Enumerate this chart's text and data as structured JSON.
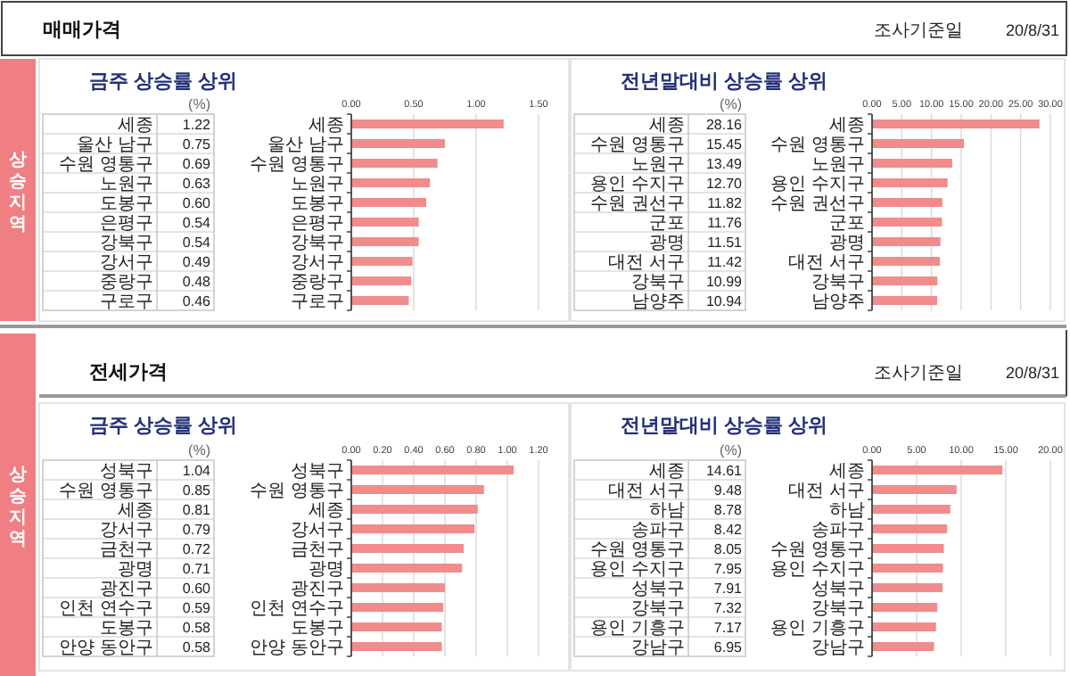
{
  "chart_data": [
    {
      "type": "bar",
      "orientation": "horizontal",
      "title": "금주 상승률 상위",
      "xlabel": "(%)",
      "annotations": [
        "매매가격",
        "조사기준일",
        "20/8/31",
        "상승지역"
      ],
      "categories": [
        "세종",
        "울산 남구",
        "수원 영통구",
        "노원구",
        "도봉구",
        "은평구",
        "강북구",
        "강서구",
        "중랑구",
        "구로구"
      ],
      "values": [
        1.22,
        0.75,
        0.69,
        0.63,
        0.6,
        0.54,
        0.54,
        0.49,
        0.48,
        0.46
      ],
      "value_labels": [
        "1.22",
        "0.75",
        "0.69",
        "0.63",
        "0.60",
        "0.54",
        "0.54",
        "0.49",
        "0.48",
        "0.46"
      ],
      "color": "#f28b8b",
      "xlim": [
        0,
        1.5
      ],
      "xticks": [
        {
          "value": 0,
          "label": "0.00"
        },
        {
          "value": 0.5,
          "label": "0.50"
        },
        {
          "value": 1,
          "label": "1.00"
        },
        {
          "value": 1.5,
          "label": "1.50"
        }
      ],
      "grid": "x"
    },
    {
      "type": "bar",
      "orientation": "horizontal",
      "title": "전년말대비 상승률 상위",
      "xlabel": "(%)",
      "categories": [
        "세종",
        "수원 영통구",
        "노원구",
        "용인 수지구",
        "수원 권선구",
        "군포",
        "광명",
        "대전 서구",
        "강북구",
        "남양주"
      ],
      "values": [
        28.16,
        15.45,
        13.49,
        12.7,
        11.82,
        11.76,
        11.51,
        11.42,
        10.99,
        10.94
      ],
      "value_labels": [
        "28.16",
        "15.45",
        "13.49",
        "12.70",
        "11.82",
        "11.76",
        "11.51",
        "11.42",
        "10.99",
        "10.94"
      ],
      "color": "#f28b8b",
      "xlim": [
        0,
        30
      ],
      "xticks": [
        {
          "value": 0,
          "label": "0.00"
        },
        {
          "value": 5,
          "label": "5.00"
        },
        {
          "value": 10,
          "label": "10.00"
        },
        {
          "value": 15,
          "label": "15.00"
        },
        {
          "value": 20,
          "label": "20.00"
        },
        {
          "value": 25,
          "label": "25.00"
        },
        {
          "value": 30,
          "label": "30.00"
        }
      ],
      "grid": "x"
    },
    {
      "type": "bar",
      "orientation": "horizontal",
      "title": "금주 상승률 상위",
      "xlabel": "(%)",
      "annotations": [
        "전세가격",
        "조사기준일",
        "20/8/31",
        "상승지역"
      ],
      "categories": [
        "성북구",
        "수원 영통구",
        "세종",
        "강서구",
        "금천구",
        "광명",
        "광진구",
        "인천 연수구",
        "도봉구",
        "안양 동안구"
      ],
      "values": [
        1.04,
        0.85,
        0.81,
        0.79,
        0.72,
        0.71,
        0.6,
        0.59,
        0.58,
        0.58
      ],
      "value_labels": [
        "1.04",
        "0.85",
        "0.81",
        "0.79",
        "0.72",
        "0.71",
        "0.60",
        "0.59",
        "0.58",
        "0.58"
      ],
      "color": "#f28b8b",
      "xlim": [
        0,
        1.2
      ],
      "xticks": [
        {
          "value": 0,
          "label": "0.00"
        },
        {
          "value": 0.2,
          "label": "0.20"
        },
        {
          "value": 0.4,
          "label": "0.40"
        },
        {
          "value": 0.6,
          "label": "0.60"
        },
        {
          "value": 0.8,
          "label": "0.80"
        },
        {
          "value": 1,
          "label": "1.00"
        },
        {
          "value": 1.2,
          "label": "1.20"
        }
      ],
      "grid": "x"
    },
    {
      "type": "bar",
      "orientation": "horizontal",
      "title": "전년말대비 상승률 상위",
      "xlabel": "(%)",
      "categories": [
        "세종",
        "대전 서구",
        "하남",
        "송파구",
        "수원 영통구",
        "용인 수지구",
        "성북구",
        "강북구",
        "용인 기흥구",
        "강남구"
      ],
      "values": [
        14.61,
        9.48,
        8.78,
        8.42,
        8.05,
        7.95,
        7.91,
        7.32,
        7.17,
        6.95
      ],
      "value_labels": [
        "14.61",
        "9.48",
        "8.78",
        "8.42",
        "8.05",
        "7.95",
        "7.91",
        "7.32",
        "7.17",
        "6.95"
      ],
      "color": "#f28b8b",
      "xlim": [
        0,
        20
      ],
      "xticks": [
        {
          "value": 0,
          "label": "0.00"
        },
        {
          "value": 5,
          "label": "5.00"
        },
        {
          "value": 10,
          "label": "10.00"
        },
        {
          "value": 15,
          "label": "15.00"
        },
        {
          "value": 20,
          "label": "20.00"
        }
      ],
      "grid": "x"
    }
  ]
}
